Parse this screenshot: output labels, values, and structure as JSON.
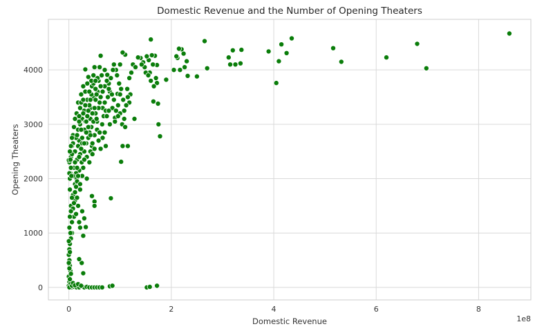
{
  "chart_data": {
    "type": "scatter",
    "title": "Domestic Revenue and the Number of Opening Theaters",
    "xlabel": "Domestic Revenue",
    "ylabel": "Opening Theaters",
    "x_offset_label": "1e8",
    "x_ticks": [
      0,
      2,
      4,
      6,
      8
    ],
    "x_tick_labels": [
      "0",
      "2",
      "4",
      "6",
      "8"
    ],
    "y_ticks": [
      0,
      1000,
      2000,
      3000,
      4000
    ],
    "y_tick_labels": [
      "0",
      "1000",
      "2000",
      "3000",
      "4000"
    ],
    "xlim": [
      -0.4,
      9.02
    ],
    "ylim": [
      -230,
      4930
    ],
    "grid": true,
    "color": "#0a7d0a",
    "x_unit_note": "x values expressed in units of 1e8",
    "points": [
      [
        8.6,
        4670
      ],
      [
        6.98,
        4030
      ],
      [
        6.8,
        4480
      ],
      [
        6.2,
        4230
      ],
      [
        5.32,
        4150
      ],
      [
        5.16,
        4400
      ],
      [
        4.35,
        4580
      ],
      [
        4.25,
        4310
      ],
      [
        4.15,
        4470
      ],
      [
        4.1,
        4160
      ],
      [
        4.05,
        3760
      ],
      [
        3.9,
        4340
      ],
      [
        3.37,
        4370
      ],
      [
        3.35,
        4120
      ],
      [
        3.25,
        4100
      ],
      [
        3.2,
        4360
      ],
      [
        3.15,
        4100
      ],
      [
        3.12,
        4230
      ],
      [
        2.7,
        4030
      ],
      [
        2.65,
        4530
      ],
      [
        2.5,
        3880
      ],
      [
        2.32,
        3890
      ],
      [
        2.3,
        4160
      ],
      [
        2.26,
        4050
      ],
      [
        2.24,
        4300
      ],
      [
        2.2,
        4380
      ],
      [
        2.17,
        4000
      ],
      [
        2.15,
        4390
      ],
      [
        2.12,
        4220
      ],
      [
        2.1,
        4250
      ],
      [
        2.05,
        4000
      ],
      [
        1.9,
        3820
      ],
      [
        1.78,
        2780
      ],
      [
        1.75,
        3000
      ],
      [
        1.74,
        3380
      ],
      [
        1.72,
        3760
      ],
      [
        1.72,
        4090
      ],
      [
        1.7,
        3850
      ],
      [
        1.68,
        4260
      ],
      [
        1.65,
        3420
      ],
      [
        1.64,
        4100
      ],
      [
        1.62,
        4270
      ],
      [
        1.6,
        4560
      ],
      [
        1.58,
        3950
      ],
      [
        1.56,
        4180
      ],
      [
        1.52,
        4250
      ],
      [
        1.48,
        4050
      ],
      [
        1.45,
        4140
      ],
      [
        1.4,
        4220
      ],
      [
        1.35,
        4230
      ],
      [
        1.28,
        3100
      ],
      [
        1.2,
        3550
      ],
      [
        1.18,
        3400
      ],
      [
        1.15,
        3500
      ],
      [
        1.1,
        4280
      ],
      [
        1.08,
        3100
      ],
      [
        1.05,
        4320
      ],
      [
        1.0,
        3200
      ],
      [
        1.0,
        4100
      ],
      [
        0.95,
        3560
      ],
      [
        0.92,
        4000
      ],
      [
        0.9,
        3120
      ],
      [
        0.85,
        3300
      ],
      [
        0.8,
        3600
      ],
      [
        0.75,
        3910
      ],
      [
        0.7,
        3700
      ],
      [
        0.62,
        4260
      ],
      [
        0.6,
        3400
      ],
      [
        0.58,
        3800
      ],
      [
        0.55,
        3050
      ],
      [
        0.52,
        3200
      ],
      [
        0.5,
        4050
      ],
      [
        0.48,
        3500
      ],
      [
        0.45,
        3700
      ],
      [
        0.42,
        3300
      ],
      [
        0.38,
        3870
      ],
      [
        0.32,
        4010
      ],
      [
        0.32,
        3600
      ],
      [
        0.3,
        3250
      ],
      [
        0.26,
        3100
      ],
      [
        0.22,
        3000
      ],
      [
        0.2,
        2700
      ],
      [
        0.18,
        3400
      ],
      [
        0.15,
        3200
      ],
      [
        0.12,
        3100
      ],
      [
        0.1,
        2950
      ],
      [
        0.08,
        2800
      ],
      [
        0.06,
        2600
      ],
      [
        0.04,
        2400
      ],
      [
        0.03,
        2100
      ],
      [
        0.02,
        2000
      ],
      [
        0.01,
        2300
      ],
      [
        0.0,
        2340
      ],
      [
        0.02,
        1800
      ],
      [
        0.04,
        1500
      ],
      [
        0.06,
        1200
      ],
      [
        0.08,
        1450
      ],
      [
        0.1,
        1300
      ],
      [
        0.12,
        1600
      ],
      [
        0.14,
        1350
      ],
      [
        0.16,
        1650
      ],
      [
        0.18,
        1500
      ],
      [
        0.2,
        1200
      ],
      [
        0.22,
        1100
      ],
      [
        0.06,
        1000
      ],
      [
        0.04,
        900
      ],
      [
        0.02,
        800
      ],
      [
        0.01,
        700
      ],
      [
        0.0,
        600
      ],
      [
        0.01,
        500
      ],
      [
        0.02,
        400
      ],
      [
        0.03,
        300
      ],
      [
        0.0,
        200
      ],
      [
        0.01,
        100
      ],
      [
        0.0,
        30
      ],
      [
        0.05,
        0
      ],
      [
        0.1,
        10
      ],
      [
        0.15,
        0
      ],
      [
        0.2,
        0
      ],
      [
        0.25,
        20
      ],
      [
        0.3,
        0
      ],
      [
        0.35,
        10
      ],
      [
        0.4,
        0
      ],
      [
        0.45,
        0
      ],
      [
        0.5,
        0
      ],
      [
        0.55,
        0
      ],
      [
        0.6,
        0
      ],
      [
        0.65,
        0
      ],
      [
        0.8,
        20
      ],
      [
        0.85,
        30
      ],
      [
        1.52,
        0
      ],
      [
        1.58,
        10
      ],
      [
        1.72,
        30
      ],
      [
        0.25,
        450
      ],
      [
        0.2,
        520
      ],
      [
        0.28,
        260
      ],
      [
        0.33,
        1110
      ],
      [
        0.3,
        1270
      ],
      [
        0.45,
        1680
      ],
      [
        0.5,
        1580
      ],
      [
        0.5,
        1500
      ],
      [
        0.82,
        1640
      ],
      [
        1.02,
        2310
      ],
      [
        1.05,
        2600
      ],
      [
        1.15,
        2600
      ],
      [
        0.72,
        2600
      ],
      [
        0.8,
        3000
      ],
      [
        0.3,
        2500
      ],
      [
        0.35,
        2400
      ],
      [
        0.4,
        2300
      ],
      [
        0.45,
        2600
      ],
      [
        0.55,
        2900
      ],
      [
        0.6,
        2850
      ],
      [
        0.65,
        3000
      ],
      [
        0.4,
        2850
      ],
      [
        0.25,
        2300
      ],
      [
        0.28,
        2200
      ],
      [
        0.35,
        2000
      ],
      [
        0.15,
        2000
      ],
      [
        0.12,
        2500
      ],
      [
        0.18,
        2900
      ],
      [
        0.22,
        3300
      ],
      [
        0.24,
        3550
      ],
      [
        0.28,
        3700
      ],
      [
        0.36,
        3450
      ],
      [
        0.42,
        3100
      ],
      [
        0.44,
        2950
      ],
      [
        0.48,
        3050
      ],
      [
        0.52,
        3450
      ],
      [
        0.56,
        3600
      ],
      [
        0.62,
        3700
      ],
      [
        0.66,
        3300
      ],
      [
        0.68,
        3150
      ],
      [
        0.72,
        3250
      ],
      [
        0.76,
        3500
      ],
      [
        0.78,
        3750
      ],
      [
        0.82,
        3850
      ],
      [
        0.86,
        4000
      ],
      [
        0.88,
        4100
      ],
      [
        0.94,
        3900
      ],
      [
        0.98,
        3750
      ],
      [
        1.02,
        3650
      ],
      [
        1.06,
        3450
      ],
      [
        1.08,
        3250
      ],
      [
        1.12,
        3350
      ],
      [
        1.14,
        3650
      ],
      [
        1.18,
        3850
      ],
      [
        1.22,
        3950
      ],
      [
        1.25,
        4100
      ],
      [
        1.3,
        4050
      ],
      [
        1.42,
        4100
      ],
      [
        1.5,
        3950
      ],
      [
        1.55,
        3900
      ],
      [
        1.6,
        3800
      ],
      [
        1.66,
        3700
      ],
      [
        0.14,
        2750
      ],
      [
        0.16,
        2350
      ],
      [
        0.2,
        2150
      ],
      [
        0.26,
        2650
      ],
      [
        0.3,
        2900
      ],
      [
        0.34,
        2650
      ],
      [
        0.38,
        2750
      ],
      [
        0.42,
        2500
      ],
      [
        0.46,
        2450
      ],
      [
        0.5,
        2800
      ],
      [
        0.54,
        3100
      ],
      [
        0.58,
        3300
      ],
      [
        0.62,
        3500
      ],
      [
        0.66,
        3600
      ],
      [
        0.7,
        3400
      ],
      [
        0.74,
        3150
      ],
      [
        0.78,
        3250
      ],
      [
        0.9,
        3050
      ],
      [
        0.96,
        3350
      ],
      [
        1.0,
        3550
      ],
      [
        0.08,
        2650
      ],
      [
        0.1,
        2200
      ],
      [
        0.12,
        1900
      ],
      [
        0.14,
        2100
      ],
      [
        0.06,
        2450
      ],
      [
        0.04,
        2200
      ],
      [
        0.08,
        2050
      ],
      [
        0.18,
        2600
      ],
      [
        0.2,
        3050
      ],
      [
        0.24,
        2900
      ],
      [
        0.28,
        3200
      ],
      [
        0.32,
        3050
      ],
      [
        0.36,
        3150
      ],
      [
        0.4,
        3350
      ],
      [
        0.44,
        3550
      ],
      [
        0.48,
        3750
      ],
      [
        0.52,
        3650
      ],
      [
        0.56,
        3850
      ],
      [
        0.6,
        4050
      ],
      [
        0.64,
        3900
      ],
      [
        0.7,
        4000
      ],
      [
        0.74,
        3800
      ],
      [
        0.78,
        3650
      ],
      [
        0.84,
        3550
      ],
      [
        0.88,
        3450
      ],
      [
        0.92,
        3250
      ],
      [
        0.96,
        3150
      ],
      [
        1.04,
        3000
      ],
      [
        1.1,
        2950
      ],
      [
        0.58,
        2700
      ],
      [
        0.62,
        2550
      ],
      [
        0.66,
        2750
      ],
      [
        0.7,
        2850
      ],
      [
        0.22,
        2450
      ],
      [
        0.26,
        2050
      ],
      [
        0.3,
        2350
      ],
      [
        0.34,
        2850
      ],
      [
        0.38,
        3250
      ],
      [
        0.42,
        3450
      ],
      [
        0.46,
        3200
      ],
      [
        0.5,
        3300
      ],
      [
        0.54,
        3550
      ],
      [
        0.12,
        2300
      ],
      [
        0.16,
        2800
      ],
      [
        0.2,
        3150
      ],
      [
        0.24,
        3400
      ],
      [
        0.28,
        3450
      ],
      [
        0.32,
        3350
      ],
      [
        0.36,
        3750
      ],
      [
        0.4,
        3600
      ],
      [
        0.44,
        3800
      ],
      [
        0.48,
        3900
      ],
      [
        0.52,
        3800
      ],
      [
        0.04,
        2600
      ],
      [
        0.06,
        2750
      ],
      [
        0.02,
        2500
      ],
      [
        0.01,
        2100
      ],
      [
        0.03,
        2350
      ],
      [
        0.05,
        2050
      ],
      [
        0.02,
        1300
      ],
      [
        0.03,
        1000
      ],
      [
        0.01,
        1100
      ],
      [
        0.0,
        850
      ],
      [
        0.02,
        650
      ],
      [
        0.01,
        350
      ],
      [
        0.0,
        450
      ],
      [
        0.04,
        250
      ],
      [
        0.02,
        150
      ],
      [
        0.03,
        60
      ],
      [
        0.01,
        0
      ],
      [
        0.06,
        30
      ],
      [
        0.08,
        80
      ],
      [
        0.12,
        40
      ],
      [
        0.18,
        60
      ],
      [
        0.24,
        30
      ],
      [
        0.1,
        1550
      ],
      [
        0.14,
        1850
      ],
      [
        0.16,
        1950
      ],
      [
        0.18,
        2050
      ],
      [
        0.22,
        1900
      ],
      [
        0.08,
        1700
      ],
      [
        0.06,
        1650
      ],
      [
        0.04,
        1400
      ],
      [
        0.12,
        1750
      ],
      [
        0.16,
        2200
      ],
      [
        0.2,
        2400
      ],
      [
        0.24,
        2550
      ],
      [
        0.26,
        2750
      ],
      [
        0.3,
        2650
      ],
      [
        0.34,
        3050
      ],
      [
        0.38,
        2950
      ],
      [
        0.42,
        2800
      ],
      [
        0.46,
        2650
      ],
      [
        0.5,
        2550
      ],
      [
        0.22,
        1800
      ],
      [
        0.26,
        1400
      ],
      [
        0.28,
        950
      ]
    ]
  }
}
